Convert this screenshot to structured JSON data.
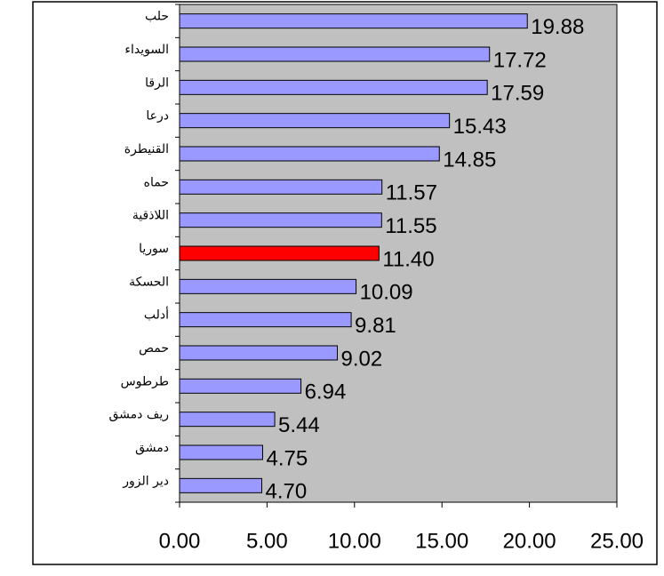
{
  "chart_data": {
    "type": "bar",
    "orientation": "horizontal",
    "categories": [
      "حلب",
      "السويداء",
      "الرقا",
      "درعا",
      "القنيطرة",
      "حماه",
      "اللاذقية",
      "سوريا",
      "الحسكة",
      "أدلب",
      "حمص",
      "طرطوس",
      "ريف دمشق",
      "دمشق",
      "دير الزور"
    ],
    "values": [
      19.88,
      17.72,
      17.59,
      15.43,
      14.85,
      11.57,
      11.55,
      11.4,
      10.09,
      9.81,
      9.02,
      6.94,
      5.44,
      4.75,
      4.7
    ],
    "value_labels": [
      "19.88",
      "17.72",
      "17.59",
      "15.43",
      "14.85",
      "11.57",
      "11.55",
      "11.40",
      "10.09",
      "9.81",
      "9.02",
      "6.94",
      "5.44",
      "4.75",
      "4.70"
    ],
    "colors": [
      "#9999ff",
      "#9999ff",
      "#9999ff",
      "#9999ff",
      "#9999ff",
      "#9999ff",
      "#9999ff",
      "#ff0000",
      "#9999ff",
      "#9999ff",
      "#9999ff",
      "#9999ff",
      "#9999ff",
      "#9999ff",
      "#9999ff"
    ],
    "xlim": [
      0,
      25
    ],
    "xticks": [
      {
        "value": 0,
        "label": "0.00"
      },
      {
        "value": 5,
        "label": "5.00"
      },
      {
        "value": 10,
        "label": "10.00"
      },
      {
        "value": 15,
        "label": "15.00"
      },
      {
        "value": 20,
        "label": "20.00"
      },
      {
        "value": 25,
        "label": "25.00"
      }
    ]
  }
}
